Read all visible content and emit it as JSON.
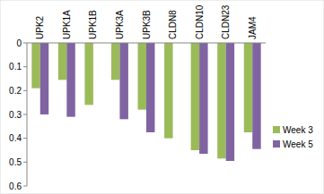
{
  "chart_data": {
    "type": "bar",
    "categories": [
      "UPK2",
      "UPK1A",
      "UPK1B",
      "UPK3A",
      "UPK3B",
      "CLDN8",
      "CLDN10",
      "CLDN23",
      "JAM4"
    ],
    "series": [
      {
        "name": "Week 3",
        "color": "#9bbb59",
        "values": [
          0.19,
          0.155,
          0.26,
          0.155,
          0.28,
          0.4,
          0.45,
          0.485,
          0.375
        ]
      },
      {
        "name": "Week 5",
        "color": "#8064a2",
        "values": [
          0.3,
          0.31,
          null,
          0.32,
          0.375,
          null,
          0.465,
          0.495,
          0.445
        ]
      }
    ],
    "ylim": [
      0,
      0.6
    ],
    "yticks": [
      0,
      0.1,
      0.2,
      0.3,
      0.4,
      0.5,
      0.6
    ],
    "grid": false,
    "legend": "right"
  }
}
